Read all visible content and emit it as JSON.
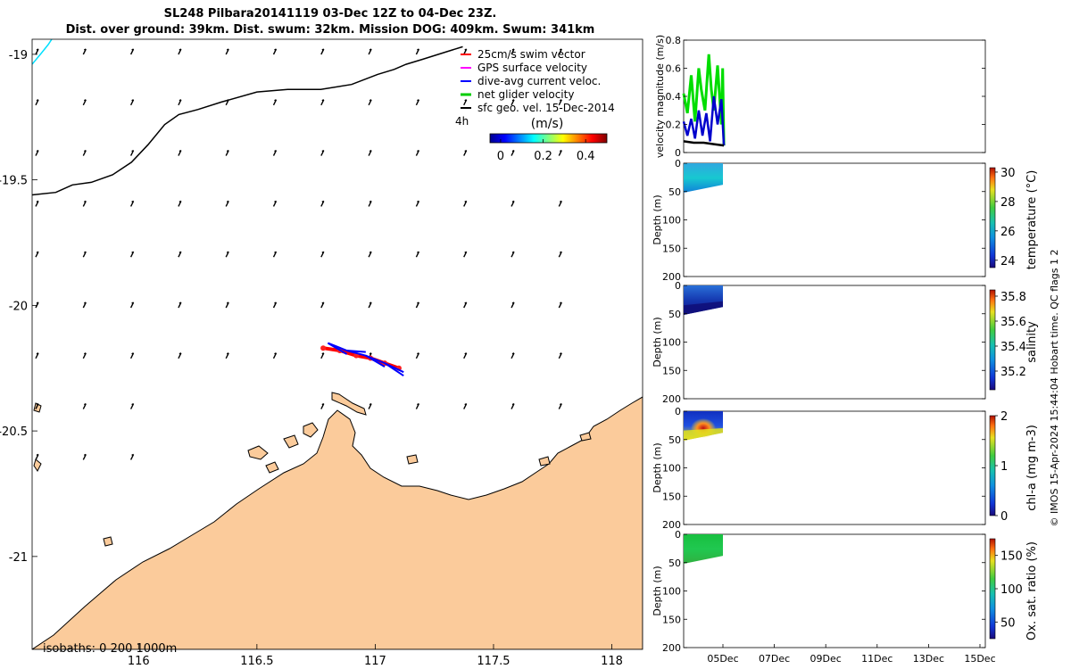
{
  "title": {
    "line1": "SL248 Pilbara20141119 03-Dec 12Z to 04-Dec 23Z.",
    "line2": "Dist. over ground: 39km. Dist. swum: 32km. Mission DOG: 409km. Swum: 341km"
  },
  "map": {
    "legend": {
      "items": [
        {
          "label": "25cm/s swim vector",
          "color": "#ff0000"
        },
        {
          "label": "GPS surface velocity",
          "color": "#ff00ff"
        },
        {
          "label": "dive-avg current veloc.",
          "color": "#0000ff"
        },
        {
          "label": "net glider velocity",
          "color": "#00cc00"
        },
        {
          "label": "sfc geo. vel. 15-Dec-2014",
          "color": "#000000"
        }
      ],
      "time_label": "4h"
    },
    "colorbar": {
      "label": "(m/s)",
      "ticks": [
        "0",
        "0.2",
        "0.4"
      ],
      "range": [
        -0.05,
        0.5
      ]
    },
    "isobaths_label": "isobaths: 0   200  1000m",
    "land_color": "#fbcb9b"
  },
  "side_label": "© IMOS 15-Apr-2024 15:44:04 Hobart time. QC flags 1  2",
  "chart_data": [
    {
      "type": "scatter",
      "name": "glider track map",
      "xlim": [
        115.55,
        118.13
      ],
      "ylim": [
        -21.37,
        -18.94
      ],
      "xticks": [
        116,
        116.5,
        117,
        117.5,
        118
      ],
      "xtick_labels": [
        "116",
        "116.5",
        "117",
        "117.5",
        "118"
      ],
      "yticks": [
        -19,
        -19.5,
        -20,
        -20.5,
        -21
      ],
      "ytick_labels": [
        "-19",
        "-19.5",
        "-20",
        "-20.5",
        "-21"
      ],
      "isobath_1000m": {
        "x": [
          115.55,
          115.65,
          115.72,
          115.8,
          115.89,
          115.97,
          116.04,
          116.11,
          116.17,
          116.25,
          116.35,
          116.5,
          116.63,
          116.77,
          116.9,
          117.01,
          117.08,
          117.13,
          117.2,
          117.3,
          117.37
        ],
        "y": [
          -19.56,
          -19.55,
          -19.52,
          -19.51,
          -19.48,
          -19.43,
          -19.36,
          -19.28,
          -19.24,
          -19.22,
          -19.19,
          -19.15,
          -19.14,
          -19.14,
          -19.12,
          -19.08,
          -19.06,
          -19.04,
          -19.02,
          -18.99,
          -18.97
        ]
      },
      "swim_track": {
        "x": [
          116.78,
          116.85,
          116.92,
          116.98,
          117.04,
          117.1
        ],
        "y": [
          -20.17,
          -20.18,
          -20.2,
          -20.21,
          -20.23,
          -20.25
        ]
      },
      "dive_avg_current": {
        "x": [
          116.8,
          116.88,
          116.96,
          117.04,
          117.12
        ],
        "y": [
          -20.15,
          -20.18,
          -20.2,
          -20.23,
          -20.28
        ]
      }
    },
    {
      "type": "line",
      "name": "velocity panel",
      "xlim": [
        0,
        12
      ],
      "ylim": [
        0,
        0.8
      ],
      "ylabel": "velocity magnitude (m/s)",
      "yticks": [
        0,
        0.2,
        0.4,
        0.6,
        0.8
      ],
      "ytick_labels": [
        "0",
        "0.2",
        "0.4",
        "0.6",
        "0.8"
      ],
      "series": [
        {
          "color": "#00dd00",
          "x": [
            0.0,
            0.15,
            0.3,
            0.45,
            0.6,
            0.7,
            0.85,
            1.0,
            1.1,
            1.2,
            1.35,
            1.5,
            1.55,
            1.6
          ],
          "y": [
            0.42,
            0.28,
            0.55,
            0.22,
            0.6,
            0.45,
            0.3,
            0.7,
            0.45,
            0.3,
            0.62,
            0.2,
            0.6,
            0.05
          ]
        },
        {
          "color": "#0000cc",
          "x": [
            0.0,
            0.15,
            0.3,
            0.45,
            0.6,
            0.75,
            0.9,
            1.05,
            1.2,
            1.35,
            1.5,
            1.6
          ],
          "y": [
            0.22,
            0.12,
            0.24,
            0.1,
            0.3,
            0.12,
            0.28,
            0.08,
            0.4,
            0.2,
            0.38,
            0.05
          ]
        },
        {
          "color": "#000000",
          "x": [
            0.0,
            0.4,
            0.8,
            1.2,
            1.6
          ],
          "y": [
            0.08,
            0.07,
            0.07,
            0.06,
            0.05
          ]
        }
      ]
    },
    {
      "type": "heatmap",
      "name": "temperature section",
      "ylabel": "Depth (m)",
      "ylim": [
        200,
        0
      ],
      "yticks": [
        0,
        50,
        100,
        150,
        200
      ],
      "ytick_labels": [
        "0",
        "50",
        "100",
        "150",
        "200"
      ],
      "colorbar_label": "temperature (°C)",
      "colorbar_ticks": [
        "24",
        "26",
        "28",
        "30"
      ],
      "colorbar_range": [
        23.5,
        30.3
      ]
    },
    {
      "type": "heatmap",
      "name": "salinity section",
      "ylabel": "Depth (m)",
      "ylim": [
        200,
        0
      ],
      "yticks": [
        0,
        50,
        100,
        150,
        200
      ],
      "ytick_labels": [
        "0",
        "50",
        "100",
        "150",
        "200"
      ],
      "colorbar_label": "salinity",
      "colorbar_ticks": [
        "35.2",
        "35.4",
        "35.6",
        "35.8"
      ],
      "colorbar_range": [
        35.05,
        35.85
      ]
    },
    {
      "type": "heatmap",
      "name": "chlorophyll section",
      "ylabel": "Depth (m)",
      "ylim": [
        200,
        0
      ],
      "yticks": [
        0,
        50,
        100,
        150,
        200
      ],
      "ytick_labels": [
        "0",
        "50",
        "100",
        "150",
        "200"
      ],
      "colorbar_label": "chl-a (mg m-3)",
      "colorbar_ticks": [
        "0",
        "1",
        "2"
      ],
      "colorbar_range": [
        0,
        2
      ]
    },
    {
      "type": "heatmap",
      "name": "oxygen section",
      "ylabel": "Depth (m)",
      "ylim": [
        200,
        0
      ],
      "yticks": [
        0,
        50,
        100,
        150,
        200
      ],
      "ytick_labels": [
        "0",
        "50",
        "100",
        "150",
        "200"
      ],
      "xtick_labels": [
        "05Dec",
        "07Dec",
        "09Dec",
        "11Dec",
        "13Dec",
        "15Dec"
      ],
      "colorbar_label": "Ox. sat. ratio (%)",
      "colorbar_ticks": [
        "50",
        "100",
        "150"
      ],
      "colorbar_range": [
        25,
        175
      ]
    }
  ]
}
